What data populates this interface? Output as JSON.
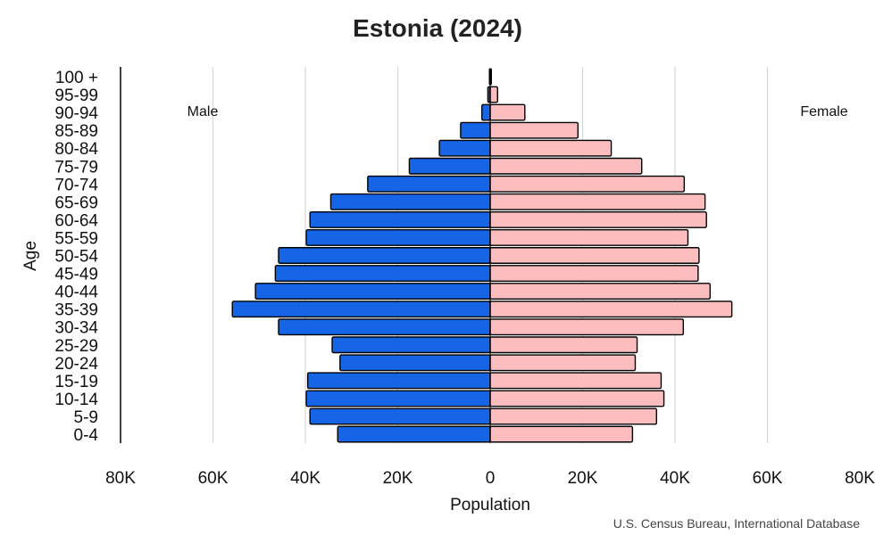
{
  "chart_data": {
    "type": "bar",
    "title": "Estonia (2024)",
    "xlabel": "Population",
    "ylabel": "Age",
    "left_label": "Male",
    "right_label": "Female",
    "source": "U.S. Census Bureau, International Database",
    "xlim": [
      -80000,
      80000
    ],
    "x_ticks": [
      -80000,
      -60000,
      -40000,
      -20000,
      0,
      20000,
      40000,
      60000,
      80000
    ],
    "x_tick_labels": [
      "80K",
      "60K",
      "40K",
      "20K",
      "0",
      "20K",
      "40K",
      "60K",
      "80K"
    ],
    "grid": "vertical",
    "categories": [
      "100 +",
      "95-99",
      "90-94",
      "85-89",
      "80-84",
      "75-79",
      "70-74",
      "65-69",
      "60-64",
      "55-59",
      "50-54",
      "45-49",
      "40-44",
      "35-39",
      "30-34",
      "25-29",
      "20-24",
      "15-19",
      "10-14",
      "5-9",
      "0-4"
    ],
    "series": [
      {
        "name": "Male",
        "color": "#1565e6",
        "values": [
          50,
          500,
          1800,
          6400,
          11000,
          17500,
          26500,
          34500,
          39000,
          39800,
          45800,
          46500,
          50800,
          55800,
          45800,
          34200,
          32500,
          39500,
          39800,
          39000,
          33000
        ]
      },
      {
        "name": "Female",
        "color": "#fbbdbd",
        "values": [
          250,
          1600,
          7500,
          19000,
          26200,
          32800,
          42000,
          46500,
          46800,
          42800,
          45200,
          45000,
          47600,
          52300,
          41800,
          31800,
          31400,
          37000,
          37600,
          36000,
          30800
        ]
      }
    ]
  }
}
